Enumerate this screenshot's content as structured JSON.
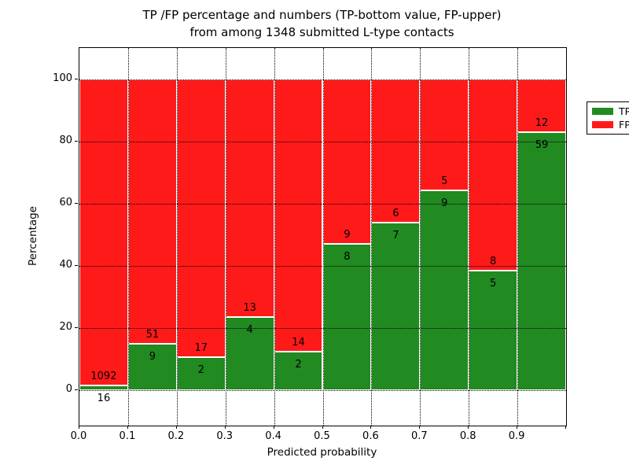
{
  "title": {
    "line1": "TP /FP percentage and numbers (TP-bottom value, FP-upper)",
    "line2": "from among 1348 submitted L-type contacts"
  },
  "x_axis": {
    "label": "Predicted probability",
    "tick_labels": [
      "0.0",
      "0.1",
      "0.2",
      "0.3",
      "0.4",
      "0.5",
      "0.6",
      "0.7",
      "0.8",
      "0.9"
    ]
  },
  "y_axis": {
    "label": "Percentage",
    "tick_labels": [
      "0",
      "20",
      "40",
      "60",
      "80",
      "100"
    ],
    "tick_values": [
      0,
      20,
      40,
      60,
      80,
      100
    ]
  },
  "legend": {
    "items": [
      {
        "label": "TP",
        "color": "#218a21"
      },
      {
        "label": "FP",
        "color": "#ff1a1a"
      }
    ]
  },
  "colors": {
    "tp_green": "#218a21",
    "fp_red": "#ff1a1a",
    "grid": "#000000",
    "background": "#ffffff"
  },
  "chart_data": {
    "type": "bar",
    "stacked": true,
    "normalized_to_percent": true,
    "title": "TP /FP percentage and numbers (TP-bottom value, FP-upper) from among 1348 submitted L-type contacts",
    "xlabel": "Predicted probability",
    "ylabel": "Percentage",
    "total_contacts": 1348,
    "bin_edges": [
      0.0,
      0.1,
      0.2,
      0.3,
      0.4,
      0.5,
      0.6,
      0.7,
      0.8,
      0.9,
      1.0
    ],
    "series": [
      {
        "name": "TP",
        "position": "bottom",
        "counts": [
          16,
          9,
          2,
          4,
          2,
          8,
          7,
          9,
          5,
          59
        ],
        "percent": [
          1.44,
          15.0,
          10.53,
          23.53,
          12.5,
          47.06,
          53.85,
          64.29,
          38.46,
          83.1
        ]
      },
      {
        "name": "FP",
        "position": "top",
        "counts": [
          1092,
          51,
          17,
          13,
          14,
          9,
          6,
          5,
          8,
          12
        ],
        "percent": [
          98.56,
          85.0,
          89.47,
          76.47,
          87.5,
          52.94,
          46.15,
          35.71,
          61.54,
          16.9
        ]
      }
    ],
    "bar_total_percent": 100,
    "ylim": [
      -11.4,
      110.1
    ],
    "xlim": [
      0.0,
      1.0
    ],
    "grid": true,
    "grid_style": "dotted",
    "legend_position": "upper right"
  }
}
